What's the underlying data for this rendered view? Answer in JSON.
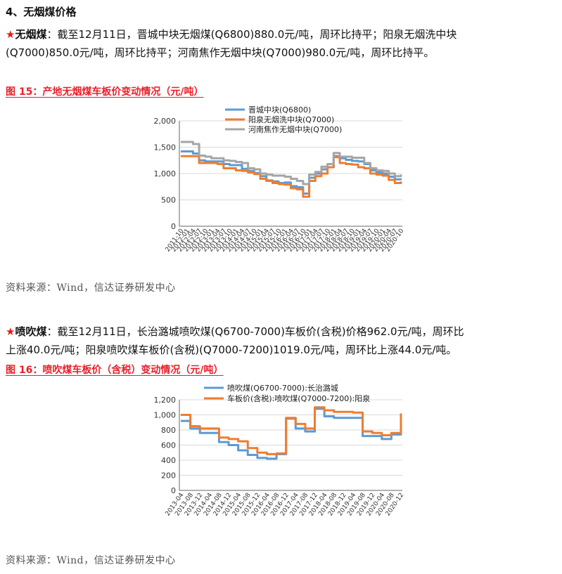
{
  "section": {
    "heading": "4、无烟煤价格"
  },
  "anthracite": {
    "star": "★",
    "lead": "无烟煤",
    "colon": "：",
    "text_line1": "截至12月11日，晋城中块无烟煤(Q6800)880.0元/吨，周环比持平；阳泉无烟洗中块",
    "text_line2": "(Q7000)850.0元/吨，周环比持平；河南焦作无烟中块(Q7000)980.0元/吨，周环比持平。"
  },
  "figure15": {
    "title": "图 15：产地无烟煤车板价变动情况（元/吨）",
    "source": "资料来源：Wind，信达证券研发中心"
  },
  "injection": {
    "star": "★",
    "lead": "喷吹煤",
    "colon": "：",
    "text_line1": "截至12月11日，长治潞城喷吹煤(Q6700-7000)车板价(含税)价格962.0元/吨，周环比",
    "text_line2": "上涨40.0元/吨；阳泉喷吹煤车板价(含税)(Q7000-7200)1019.0元/吨，周环比上涨44.0元/吨。"
  },
  "figure16": {
    "title": "图 16：喷吹煤车板价（含税）变动情况（元/吨）",
    "source": "资料来源：Wind，信达证券研发中心"
  },
  "chart_data": [
    {
      "type": "line",
      "title": "",
      "xlabel": "",
      "ylabel": "",
      "ylim": [
        0,
        2000
      ],
      "yticks": [
        "0",
        "500",
        "1,000",
        "1,500",
        "2,000"
      ],
      "grid": "horizontal",
      "legend_position": "top-center",
      "x_ticks": [
        "2011-10",
        "2012-01",
        "2012-04",
        "2012-07",
        "2012-10",
        "2013-01",
        "2013-04",
        "2013-07",
        "2013-10",
        "2014-01",
        "2014-04",
        "2014-07",
        "2014-10",
        "2015-01",
        "2015-04",
        "2015-07",
        "2015-10",
        "2016-01",
        "2016-04",
        "2016-07",
        "2016-10",
        "2017-01",
        "2017-04",
        "2017-07",
        "2017-10",
        "2018-01",
        "2018-04",
        "2018-07",
        "2018-10",
        "2019-01",
        "2019-04",
        "2019-07",
        "2019-10",
        "2020-01",
        "2020-04",
        "2020-07",
        "2020-10"
      ],
      "series": [
        {
          "name": "晋城中块(Q6800)",
          "color": "#5b9bd5",
          "values": [
            1420,
            1420,
            1380,
            1250,
            1230,
            1230,
            1230,
            1180,
            1160,
            1160,
            1090,
            1050,
            1010,
            950,
            870,
            850,
            820,
            830,
            760,
            740,
            620,
            920,
            1000,
            1080,
            1120,
            1330,
            1290,
            1260,
            1240,
            1230,
            1180,
            1060,
            1020,
            1000,
            940,
            890,
            880
          ]
        },
        {
          "name": "阳泉无烟洗中块(Q7000)",
          "color": "#ed7d31",
          "values": [
            1330,
            1330,
            1330,
            1200,
            1200,
            1200,
            1180,
            1100,
            1100,
            1060,
            1050,
            1020,
            990,
            900,
            860,
            820,
            800,
            790,
            720,
            700,
            560,
            860,
            950,
            1000,
            1120,
            1310,
            1200,
            1180,
            1170,
            1120,
            1100,
            1000,
            980,
            960,
            880,
            820,
            850
          ]
        },
        {
          "name": "河南焦作无烟中块(Q7000)",
          "color": "#a5a5a5",
          "values": [
            1600,
            1600,
            1560,
            1340,
            1320,
            1290,
            1290,
            1250,
            1240,
            1220,
            1200,
            1100,
            1080,
            1000,
            980,
            960,
            960,
            940,
            900,
            860,
            800,
            980,
            1030,
            1130,
            1180,
            1390,
            1320,
            1320,
            1300,
            1300,
            1200,
            1100,
            1060,
            1050,
            1000,
            950,
            980
          ]
        }
      ]
    },
    {
      "type": "line",
      "title": "",
      "xlabel": "",
      "ylabel": "",
      "ylim": [
        0,
        1200
      ],
      "yticks": [
        "0",
        "200",
        "400",
        "600",
        "800",
        "1,000",
        "1,200"
      ],
      "grid": "horizontal",
      "legend_position": "top-center",
      "x_ticks": [
        "2013-04",
        "2013-08",
        "2013-12",
        "2014-04",
        "2014-08",
        "2014-12",
        "2015-04",
        "2015-08",
        "2015-12",
        "2016-04",
        "2016-08",
        "2016-12",
        "2017-04",
        "2017-08",
        "2017-12",
        "2018-04",
        "2018-08",
        "2018-12",
        "2019-04",
        "2019-08",
        "2019-12",
        "2020-04",
        "2020-08",
        "2020-12"
      ],
      "series": [
        {
          "name": "喷吹煤(Q6700-7000):长治潞城",
          "color": "#5b9bd5",
          "values": [
            920,
            820,
            760,
            760,
            640,
            600,
            530,
            470,
            430,
            420,
            480,
            950,
            820,
            780,
            1080,
            980,
            960,
            960,
            960,
            720,
            720,
            680,
            740,
            962
          ]
        },
        {
          "name": "车板价(含税):喷吹煤(Q7000-7200):阳泉",
          "color": "#ed7d31",
          "values": [
            1000,
            850,
            820,
            820,
            700,
            680,
            650,
            560,
            500,
            480,
            490,
            960,
            880,
            820,
            1100,
            1060,
            1040,
            1040,
            1030,
            780,
            760,
            730,
            760,
            1019
          ]
        }
      ]
    }
  ]
}
